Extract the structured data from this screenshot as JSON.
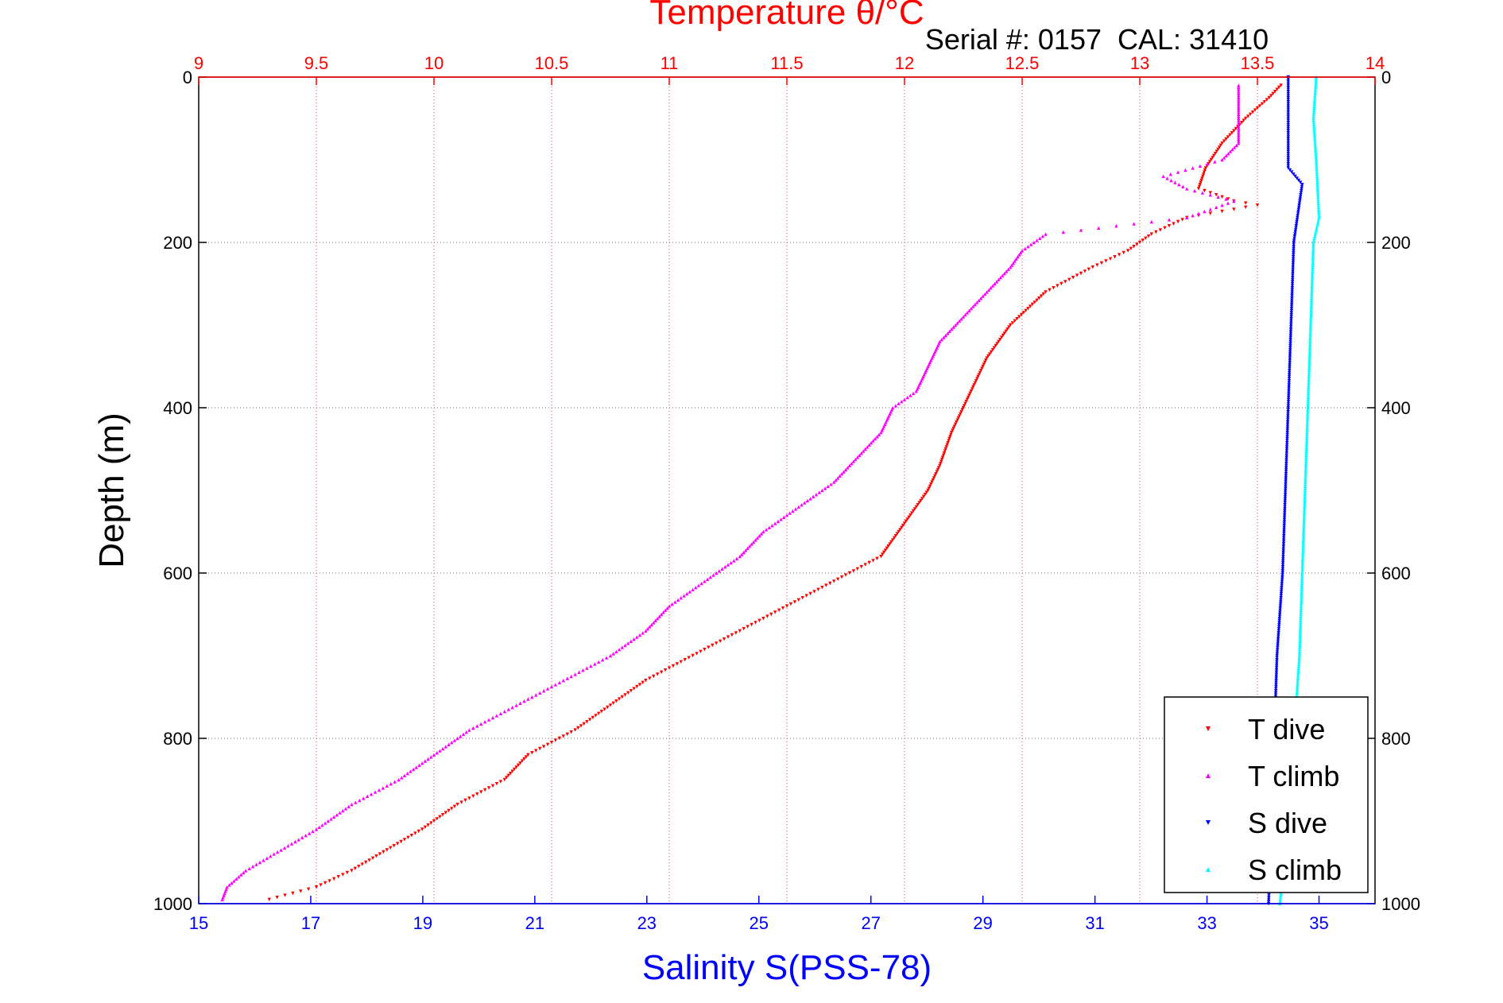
{
  "chart_data": {
    "type": "scatter",
    "title": "Temperature θ/°C",
    "subtitle": "Serial #: 0157  CAL: 31410",
    "ylabel": "Depth (m)",
    "xlabel_bottom": "Salinity S(PSS-78)",
    "xlabel_top": "Temperature θ/°C",
    "ylim": [
      0,
      1000
    ],
    "y_reversed": true,
    "y_ticks": [
      "0",
      "200",
      "400",
      "600",
      "800",
      "1000"
    ],
    "x_bottom_lim": [
      15,
      36
    ],
    "x_bottom_ticks": [
      "15",
      "17",
      "19",
      "21",
      "23",
      "25",
      "27",
      "29",
      "31",
      "33",
      "35"
    ],
    "x_top_lim": [
      9,
      14
    ],
    "x_top_ticks": [
      "9",
      "9.5",
      "10",
      "10.5",
      "11",
      "11.5",
      "12",
      "12.5",
      "13",
      "13.5",
      "14"
    ],
    "grid": true,
    "legend_position": "bottom-right",
    "series": [
      {
        "name": "T dive",
        "axis": "top",
        "color": "#ff0000",
        "marker": "triangle-down",
        "points": [
          [
            13.6,
            10
          ],
          [
            13.55,
            25
          ],
          [
            13.45,
            50
          ],
          [
            13.35,
            80
          ],
          [
            13.28,
            110
          ],
          [
            13.25,
            135
          ],
          [
            13.4,
            150
          ],
          [
            13.5,
            155
          ],
          [
            13.2,
            170
          ],
          [
            13.05,
            190
          ],
          [
            12.95,
            210
          ],
          [
            12.8,
            230
          ],
          [
            12.6,
            260
          ],
          [
            12.45,
            300
          ],
          [
            12.35,
            340
          ],
          [
            12.3,
            370
          ],
          [
            12.25,
            400
          ],
          [
            12.2,
            430
          ],
          [
            12.15,
            470
          ],
          [
            12.1,
            500
          ],
          [
            12.0,
            540
          ],
          [
            11.95,
            560
          ],
          [
            11.9,
            580
          ],
          [
            11.7,
            610
          ],
          [
            11.5,
            640
          ],
          [
            11.3,
            670
          ],
          [
            11.1,
            700
          ],
          [
            10.9,
            730
          ],
          [
            10.75,
            760
          ],
          [
            10.6,
            790
          ],
          [
            10.4,
            820
          ],
          [
            10.3,
            850
          ],
          [
            10.1,
            880
          ],
          [
            9.95,
            910
          ],
          [
            9.8,
            935
          ],
          [
            9.65,
            960
          ],
          [
            9.5,
            980
          ],
          [
            9.3,
            995
          ]
        ]
      },
      {
        "name": "T climb",
        "axis": "top",
        "color": "#ff00ff",
        "marker": "triangle-up",
        "points": [
          [
            13.42,
            10
          ],
          [
            13.42,
            40
          ],
          [
            13.42,
            80
          ],
          [
            13.35,
            100
          ],
          [
            13.1,
            120
          ],
          [
            13.2,
            135
          ],
          [
            13.4,
            150
          ],
          [
            13.3,
            160
          ],
          [
            13.2,
            170
          ],
          [
            12.9,
            180
          ],
          [
            12.6,
            190
          ],
          [
            12.5,
            210
          ],
          [
            12.45,
            230
          ],
          [
            12.35,
            260
          ],
          [
            12.25,
            290
          ],
          [
            12.15,
            320
          ],
          [
            12.1,
            350
          ],
          [
            12.05,
            380
          ],
          [
            11.95,
            400
          ],
          [
            11.9,
            430
          ],
          [
            11.8,
            460
          ],
          [
            11.7,
            490
          ],
          [
            11.55,
            520
          ],
          [
            11.4,
            550
          ],
          [
            11.3,
            580
          ],
          [
            11.15,
            610
          ],
          [
            11.0,
            640
          ],
          [
            10.9,
            670
          ],
          [
            10.75,
            700
          ],
          [
            10.55,
            730
          ],
          [
            10.35,
            760
          ],
          [
            10.15,
            790
          ],
          [
            10.0,
            820
          ],
          [
            9.85,
            850
          ],
          [
            9.65,
            880
          ],
          [
            9.5,
            910
          ],
          [
            9.35,
            935
          ],
          [
            9.2,
            960
          ],
          [
            9.12,
            980
          ],
          [
            9.1,
            995
          ]
        ]
      },
      {
        "name": "S dive",
        "axis": "bottom",
        "color": "#0000ff",
        "marker": "triangle-down",
        "points": [
          [
            34.45,
            0
          ],
          [
            34.45,
            50
          ],
          [
            34.45,
            110
          ],
          [
            34.7,
            130
          ],
          [
            34.55,
            200
          ],
          [
            34.5,
            300
          ],
          [
            34.45,
            400
          ],
          [
            34.4,
            500
          ],
          [
            34.35,
            600
          ],
          [
            34.25,
            700
          ],
          [
            34.2,
            800
          ],
          [
            34.15,
            900
          ],
          [
            34.1,
            1000
          ]
        ]
      },
      {
        "name": "S climb",
        "axis": "bottom",
        "color": "#00ffff",
        "marker": "triangle-up",
        "points": [
          [
            34.95,
            0
          ],
          [
            34.9,
            50
          ],
          [
            34.95,
            100
          ],
          [
            35.0,
            170
          ],
          [
            34.9,
            200
          ],
          [
            34.85,
            300
          ],
          [
            34.8,
            400
          ],
          [
            34.75,
            500
          ],
          [
            34.7,
            600
          ],
          [
            34.65,
            700
          ],
          [
            34.55,
            800
          ],
          [
            34.45,
            900
          ],
          [
            34.3,
            1000
          ]
        ]
      }
    ]
  }
}
